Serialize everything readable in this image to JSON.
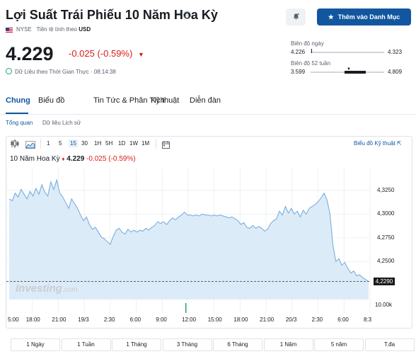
{
  "header": {
    "title": "Lợi Suất Trái Phiếu 10 Năm Hoa Kỳ",
    "info_icon": "info-icon",
    "exchange": "NYSE",
    "currency_label": "Tiền tệ tính theo",
    "currency": "USD",
    "alert_icon": "bell-plus-icon",
    "watchlist_label": "Thêm vào Danh Mục"
  },
  "quote": {
    "price": "4.229",
    "change": "-0.025 (-0.59%)",
    "change_icon": "down-triangle-icon",
    "realtime_label": "Dữ Liệu theo Thời Gian Thực · 08:14:38"
  },
  "ranges": {
    "day_label": "Biên độ ngày",
    "day_low": "4.226",
    "day_high": "4.323",
    "week52_label": "Biên độ 52 tuần",
    "week52_low": "3.599",
    "week52_high": "4.809",
    "week52_position": 0.52
  },
  "tabs": [
    {
      "label": "Chung",
      "active": true
    },
    {
      "label": "Biểu đồ",
      "active": false
    },
    {
      "label": "Tin Tức & Phân Tích",
      "active": false
    },
    {
      "label": "Kỹ thuật",
      "active": false
    },
    {
      "label": "Diễn đàn",
      "active": false
    }
  ],
  "subtabs": [
    {
      "label": "Tổng quan",
      "active": true
    },
    {
      "label": "Dữ liệu Lịch sử",
      "active": false
    }
  ],
  "toolbar": {
    "intervals": [
      "1",
      "5",
      "15",
      "30",
      "1H",
      "5H",
      "1D",
      "1W",
      "1M"
    ],
    "selected_interval": "15",
    "advanced_label": "Biểu đồ Kỹ thuật"
  },
  "chart_legend": {
    "name": "10 Năm Hoa Kỳ",
    "value": "4.229",
    "change": "-0.025 (-0.59%)"
  },
  "chart_data": {
    "type": "area",
    "x_ticks": [
      "5:00",
      "18:00",
      "21:00",
      "19/3",
      "2:30",
      "6:00",
      "9:00",
      "12:00",
      "15:00",
      "18:00",
      "21:00",
      "20/3",
      "2:30",
      "6:00",
      "8:3"
    ],
    "y_ticks": [
      "4,3250",
      "4,3000",
      "4,2750",
      "4,2500"
    ],
    "ylim": [
      4.21,
      4.345
    ],
    "current_value": "4,2290",
    "volume_label": "10.00k",
    "watermark": "Investing.com",
    "color": "#6fa8dc",
    "values": [
      4.316,
      4.314,
      4.322,
      4.318,
      4.326,
      4.321,
      4.316,
      4.324,
      4.319,
      4.327,
      4.321,
      4.331,
      4.323,
      4.319,
      4.334,
      4.326,
      4.336,
      4.322,
      4.318,
      4.312,
      4.306,
      4.316,
      4.311,
      4.306,
      4.299,
      4.293,
      4.297,
      4.289,
      4.284,
      4.286,
      4.281,
      4.276,
      4.274,
      4.271,
      4.268,
      4.276,
      4.283,
      4.285,
      4.281,
      4.279,
      4.284,
      4.281,
      4.283,
      4.281,
      4.283,
      4.282,
      4.285,
      4.283,
      4.286,
      4.288,
      4.292,
      4.29,
      4.292,
      4.289,
      4.293,
      4.296,
      4.294,
      4.297,
      4.299,
      4.302,
      4.299,
      4.299,
      4.298,
      4.299,
      4.298,
      4.3,
      4.299,
      4.299,
      4.298,
      4.299,
      4.298,
      4.299,
      4.298,
      4.297,
      4.296,
      4.297,
      4.295,
      4.293,
      4.289,
      4.291,
      4.286,
      4.285,
      4.288,
      4.285,
      4.287,
      4.285,
      4.282,
      4.284,
      4.29,
      4.293,
      4.295,
      4.303,
      4.299,
      4.308,
      4.301,
      4.306,
      4.3,
      4.303,
      4.297,
      4.304,
      4.3,
      4.306,
      4.308,
      4.31,
      4.313,
      4.317,
      4.322,
      4.315,
      4.3,
      4.267,
      4.25,
      4.253,
      4.246,
      4.249,
      4.243,
      4.238,
      4.24,
      4.235,
      4.236,
      4.233,
      4.231,
      4.229
    ]
  },
  "periods": [
    "1 Ngày",
    "1 Tuần",
    "1 Tháng",
    "3 Tháng",
    "6 Tháng",
    "1 Năm",
    "5 năm",
    "T.đa"
  ]
}
